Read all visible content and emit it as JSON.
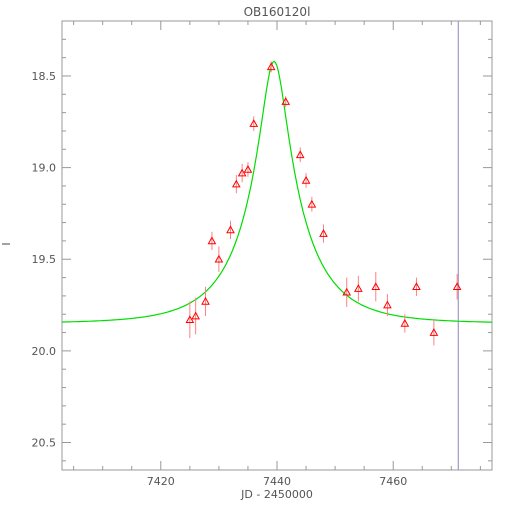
{
  "chart_data": {
    "type": "scatter",
    "title": "OB160120l",
    "xlabel": "JD - 2450000",
    "ylabel": "I",
    "xlim": [
      7403,
      7477
    ],
    "ylim": [
      20.65,
      18.2
    ],
    "y_inverted": true,
    "x_ticks": [
      7420,
      7440,
      7460
    ],
    "y_ticks": [
      18.5,
      19.0,
      19.5,
      20.0,
      20.5
    ],
    "grid": false,
    "colors": {
      "points": "#ff0000",
      "errorbars": "#ff8080",
      "model": "#00dd00",
      "axis": "#999999",
      "marker_line": "#9a9ac8"
    },
    "vertical_line_x": 7471.2,
    "model": {
      "t0": 7439.5,
      "u0": 0.2,
      "tE": 10.5,
      "base_mag": 19.85
    },
    "series": [
      {
        "type": "scatter",
        "x": [
          7425.0,
          7426.0,
          7427.7,
          7428.8,
          7430.0,
          7432.0,
          7433.0,
          7434.0,
          7435.0,
          7436.0,
          7439.0,
          7441.5,
          7444.0,
          7445.0,
          7446.0,
          7448.0,
          7452.0,
          7454.0,
          7457.0,
          7459.0,
          7462.0,
          7464.0,
          7467.0,
          7471.0
        ],
        "y": [
          19.83,
          19.81,
          19.73,
          19.4,
          19.5,
          19.34,
          19.09,
          19.03,
          19.01,
          18.76,
          18.45,
          18.64,
          18.93,
          19.07,
          19.2,
          19.36,
          19.68,
          19.66,
          19.65,
          19.75,
          19.85,
          19.65,
          19.9,
          19.65
        ],
        "err": [
          0.1,
          0.1,
          0.08,
          0.05,
          0.07,
          0.05,
          0.05,
          0.05,
          0.04,
          0.04,
          0.03,
          0.03,
          0.04,
          0.04,
          0.04,
          0.05,
          0.08,
          0.07,
          0.08,
          0.06,
          0.05,
          0.05,
          0.07,
          0.07
        ]
      }
    ]
  }
}
